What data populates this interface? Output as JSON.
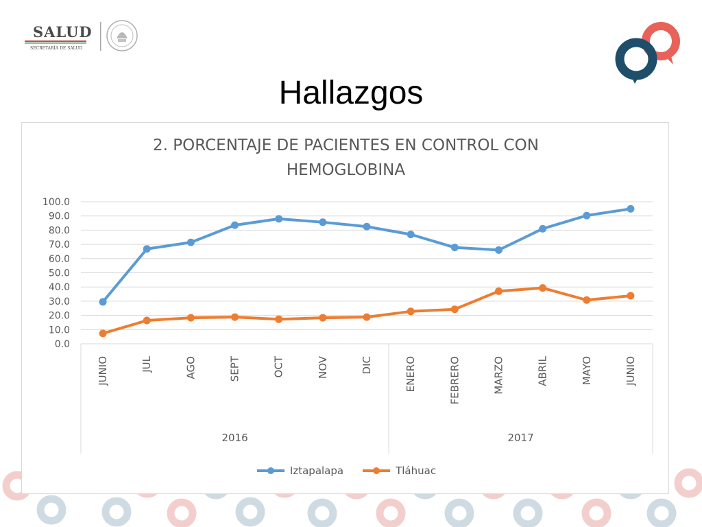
{
  "header": {
    "org_name": "SALUD",
    "org_subtitle": "SECRETARÍA DE SALUD"
  },
  "slide": {
    "title": "Hallazgos"
  },
  "colors": {
    "series1": "#5B9BD5",
    "series2": "#ED7D31",
    "brand_dark": "#1F4E6B",
    "brand_accent": "#E8625A"
  },
  "chart_data": {
    "type": "line",
    "title_line1": "2. PORCENTAJE DE PACIENTES EN CONTROL CON",
    "title_line2": "HEMOGLOBINA",
    "categories": [
      "JUNIO",
      "JUL",
      "AGO",
      "SEPT",
      "OCT",
      "NOV",
      "DIC",
      "ENERO",
      "FEBRERO",
      "MARZO",
      "ABRIL",
      "MAYO",
      "JUNIO"
    ],
    "groups": [
      {
        "label": "2016",
        "start": 0,
        "end": 6
      },
      {
        "label": "2017",
        "start": 7,
        "end": 12
      }
    ],
    "y_ticks": [
      "0.0",
      "10.0",
      "20.0",
      "30.0",
      "40.0",
      "50.0",
      "60.0",
      "70.0",
      "80.0",
      "90.0",
      "100.0"
    ],
    "ylim": [
      0,
      100
    ],
    "grid": true,
    "legend_position": "bottom",
    "series": [
      {
        "name": "Iztapalapa",
        "values": [
          29.5,
          66.8,
          71.4,
          83.5,
          88.0,
          85.6,
          82.5,
          77.0,
          67.8,
          66.0,
          81.0,
          90.3,
          95.0
        ]
      },
      {
        "name": "Tláhuac",
        "values": [
          7.3,
          16.4,
          18.3,
          18.8,
          17.3,
          18.3,
          18.8,
          22.8,
          24.3,
          37.0,
          39.3,
          30.8,
          33.8
        ]
      }
    ]
  }
}
